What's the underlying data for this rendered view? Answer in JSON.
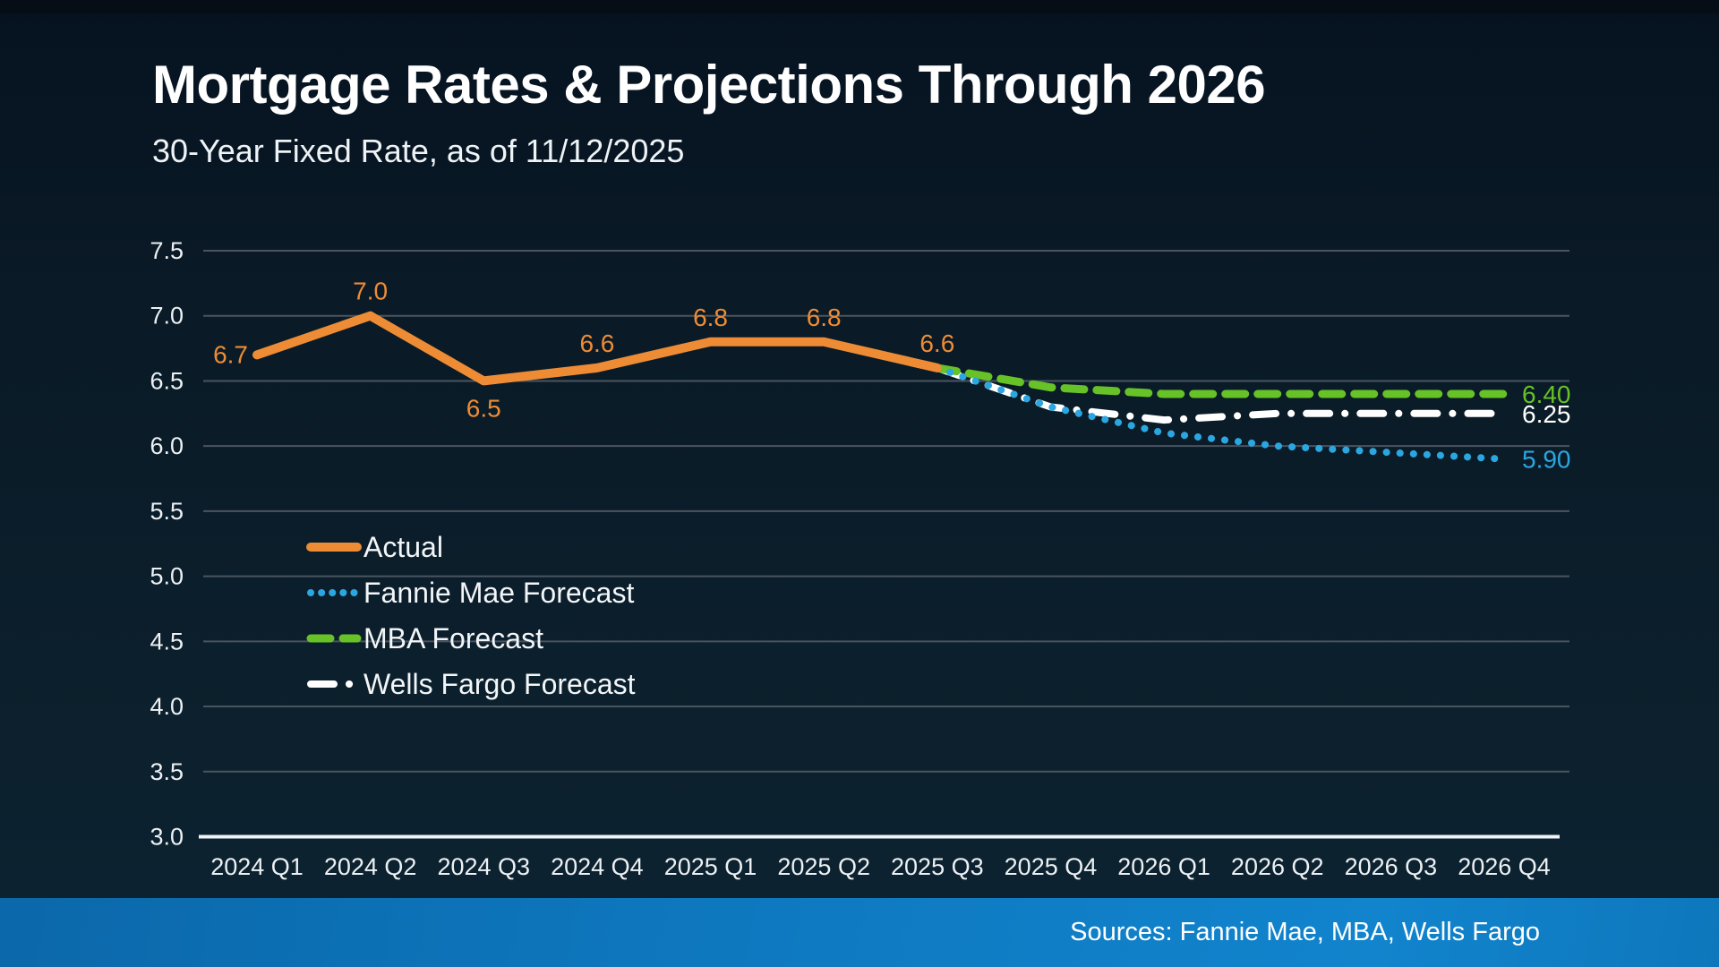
{
  "header": {
    "title": "Mortgage Rates & Projections Through 2026",
    "subtitle": "30-Year Fixed Rate, as of 11/12/2025"
  },
  "chart_data": {
    "type": "line",
    "title": "Mortgage Rates & Projections Through 2026",
    "subtitle": "30-Year Fixed Rate, as of 11/12/2025",
    "xlabel": "",
    "ylabel": "",
    "ylim": [
      3.0,
      7.5
    ],
    "ytick_step": 0.5,
    "grid": true,
    "legend_position": "inside-left-middle",
    "categories": [
      "2024 Q1",
      "2024 Q2",
      "2024 Q3",
      "2024 Q4",
      "2025 Q1",
      "2025 Q2",
      "2025 Q3",
      "2025 Q4",
      "2026 Q1",
      "2026 Q2",
      "2026 Q3",
      "2026 Q4"
    ],
    "series": [
      {
        "name": "Actual",
        "color": "#ee8c35",
        "style": "solid",
        "values": [
          6.7,
          7.0,
          6.5,
          6.6,
          6.8,
          6.8,
          6.6,
          null,
          null,
          null,
          null,
          null
        ],
        "point_labels": [
          "6.7",
          "7.0",
          "6.5",
          "6.6",
          "6.8",
          "6.8",
          "6.6"
        ],
        "label_placement": [
          "left",
          "above",
          "below",
          "above",
          "above",
          "above",
          "above"
        ]
      },
      {
        "name": "Fannie Mae Forecast",
        "color": "#2ba6e0",
        "style": "dotted",
        "values": [
          null,
          null,
          null,
          null,
          null,
          null,
          6.6,
          6.3,
          6.1,
          6.0,
          5.95,
          5.9
        ],
        "end_label": "5.90"
      },
      {
        "name": "MBA Forecast",
        "color": "#66c226",
        "style": "dashed",
        "values": [
          null,
          null,
          null,
          null,
          null,
          null,
          6.6,
          6.45,
          6.4,
          6.4,
          6.4,
          6.4
        ],
        "end_label": "6.40"
      },
      {
        "name": "Wells Fargo Forecast",
        "color": "#ffffff",
        "style": "dashdot",
        "values": [
          null,
          null,
          null,
          null,
          null,
          null,
          6.6,
          6.3,
          6.2,
          6.25,
          6.25,
          6.25
        ],
        "end_label": "6.25"
      }
    ]
  },
  "colors": {
    "background": "#0b1c29",
    "gridline": "#4a545f",
    "axis": "#f0f4f7",
    "footer_bar": "#0e79c0"
  },
  "footer": {
    "sources": "Sources: Fannie Mae, MBA, Wells Fargo"
  }
}
